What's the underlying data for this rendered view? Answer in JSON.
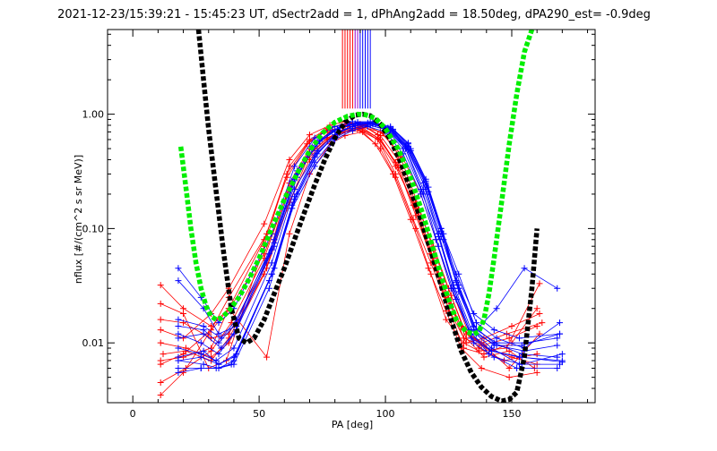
{
  "chart_data": {
    "type": "line",
    "title": "2021-12-23/15:39:21 - 15:45:23 UT, dSectr2add = 1, dPhAng2add = 18.50deg, dPA290_est=  -0.9deg",
    "xlabel": "PA [deg]",
    "ylabel": "nflux [#/(cm^2 s sr MeV)]",
    "xlim": [
      -10,
      183
    ],
    "ylim": [
      0.003,
      5.5
    ],
    "yscale": "log",
    "grid": false,
    "x_ticks": [
      0,
      50,
      100,
      150
    ],
    "x_tick_labels": [
      "0",
      "50",
      "100",
      "150"
    ],
    "y_ticks": [
      0.01,
      0.1,
      1.0
    ],
    "y_tick_labels": [
      "0.01",
      "0.10",
      "1.00"
    ],
    "colors": {
      "red_traces": "#ff0000",
      "blue_traces": "#0000ff",
      "black_fit": "#000000",
      "green_fit": "#00ee00"
    },
    "series": [
      {
        "color": "red",
        "style": "line+plus",
        "x": [
          11,
          20,
          31,
          37,
          52,
          62,
          70,
          77,
          84,
          90,
          97,
          104,
          112,
          118,
          124,
          130,
          137,
          147,
          160
        ],
        "y": [
          0.007,
          0.0075,
          0.009,
          0.018,
          0.06,
          0.22,
          0.45,
          0.62,
          0.7,
          0.72,
          0.6,
          0.35,
          0.15,
          0.06,
          0.025,
          0.014,
          0.009,
          0.007,
          0.008
        ]
      },
      {
        "color": "red",
        "style": "line+plus",
        "x": [
          11,
          20,
          31,
          38,
          53,
          62,
          70,
          78,
          85,
          91,
          98,
          105,
          112,
          119,
          125,
          131,
          138,
          148,
          162
        ],
        "y": [
          0.016,
          0.015,
          0.011,
          0.012,
          0.05,
          0.25,
          0.5,
          0.7,
          0.8,
          0.8,
          0.65,
          0.4,
          0.17,
          0.07,
          0.03,
          0.013,
          0.01,
          0.012,
          0.015
        ]
      },
      {
        "color": "red",
        "style": "line+plus",
        "x": [
          11,
          21,
          31,
          38,
          52,
          61,
          69,
          77,
          84,
          90,
          97,
          104,
          111,
          118,
          125,
          131,
          139,
          150,
          160
        ],
        "y": [
          0.01,
          0.009,
          0.0075,
          0.01,
          0.04,
          0.15,
          0.4,
          0.6,
          0.7,
          0.75,
          0.6,
          0.3,
          0.12,
          0.05,
          0.02,
          0.009,
          0.008,
          0.01,
          0.02
        ]
      },
      {
        "color": "red",
        "style": "line+plus",
        "x": [
          11,
          20,
          31,
          38,
          53,
          62,
          70,
          78,
          84,
          91,
          98,
          104,
          112,
          118,
          124,
          131,
          137,
          148,
          161
        ],
        "y": [
          0.032,
          0.02,
          0.014,
          0.02,
          0.0075,
          0.09,
          0.3,
          0.55,
          0.65,
          0.7,
          0.5,
          0.28,
          0.1,
          0.04,
          0.016,
          0.01,
          0.0085,
          0.009,
          0.033
        ]
      },
      {
        "color": "red",
        "style": "line+plus",
        "x": [
          11,
          20,
          30,
          37,
          52,
          61,
          69,
          77,
          85,
          90,
          97,
          105,
          113,
          119,
          126,
          132,
          139,
          149,
          159
        ],
        "y": [
          0.022,
          0.018,
          0.006,
          0.007,
          0.07,
          0.3,
          0.55,
          0.72,
          0.78,
          0.76,
          0.62,
          0.36,
          0.14,
          0.055,
          0.022,
          0.011,
          0.0075,
          0.0085,
          0.006
        ]
      },
      {
        "color": "red",
        "style": "line+plus",
        "x": [
          11,
          20,
          31,
          38,
          53,
          62,
          70,
          77,
          84,
          90,
          98,
          106,
          114,
          120,
          126,
          133,
          140,
          150,
          160
        ],
        "y": [
          0.0065,
          0.008,
          0.013,
          0.025,
          0.09,
          0.35,
          0.6,
          0.75,
          0.82,
          0.78,
          0.7,
          0.45,
          0.2,
          0.08,
          0.03,
          0.012,
          0.009,
          0.0075,
          0.0065
        ]
      },
      {
        "color": "red",
        "style": "line+plus",
        "x": [
          11,
          21,
          31,
          39,
          52,
          61,
          69,
          77,
          83,
          89,
          96,
          103,
          110,
          117,
          124,
          130,
          138,
          149,
          160
        ],
        "y": [
          0.0045,
          0.006,
          0.0085,
          0.015,
          0.055,
          0.2,
          0.42,
          0.62,
          0.72,
          0.74,
          0.55,
          0.3,
          0.12,
          0.045,
          0.019,
          0.009,
          0.006,
          0.005,
          0.0055
        ]
      },
      {
        "color": "red",
        "style": "line+plus",
        "x": [
          11,
          20,
          30,
          38,
          52,
          61,
          70,
          78,
          85,
          92,
          99,
          106,
          113,
          119,
          126,
          132,
          139,
          149,
          161
        ],
        "y": [
          0.0035,
          0.0055,
          0.012,
          0.02,
          0.08,
          0.28,
          0.58,
          0.76,
          0.84,
          0.8,
          0.68,
          0.42,
          0.16,
          0.065,
          0.026,
          0.012,
          0.0095,
          0.006,
          0.012
        ]
      },
      {
        "color": "red",
        "style": "line+plus",
        "x": [
          11,
          20,
          31,
          38,
          52,
          62,
          70,
          78,
          84,
          90,
          97,
          104,
          111,
          118,
          125,
          131,
          138,
          149,
          160
        ],
        "y": [
          0.013,
          0.011,
          0.018,
          0.03,
          0.11,
          0.4,
          0.66,
          0.8,
          0.86,
          0.82,
          0.66,
          0.38,
          0.16,
          0.06,
          0.024,
          0.011,
          0.0095,
          0.011,
          0.014
        ]
      },
      {
        "color": "red",
        "style": "line+plus",
        "x": [
          12,
          21,
          31,
          38,
          53,
          62,
          70,
          77,
          84,
          91,
          98,
          105,
          112,
          119,
          125,
          132,
          139,
          150,
          161
        ],
        "y": [
          0.008,
          0.0085,
          0.007,
          0.011,
          0.045,
          0.17,
          0.4,
          0.6,
          0.74,
          0.76,
          0.6,
          0.34,
          0.13,
          0.05,
          0.02,
          0.01,
          0.011,
          0.014,
          0.018
        ]
      },
      {
        "color": "blue",
        "style": "line+plus",
        "x": [
          18,
          27,
          34,
          40,
          54,
          63,
          72,
          80,
          87,
          93,
          100,
          107,
          114,
          120,
          126,
          133,
          141,
          152,
          168
        ],
        "y": [
          0.006,
          0.006,
          0.006,
          0.0065,
          0.03,
          0.15,
          0.35,
          0.6,
          0.72,
          0.78,
          0.7,
          0.45,
          0.2,
          0.08,
          0.03,
          0.013,
          0.008,
          0.006,
          0.006
        ]
      },
      {
        "color": "blue",
        "style": "line+plus",
        "x": [
          18,
          28,
          34,
          40,
          55,
          64,
          72,
          80,
          87,
          94,
          101,
          108,
          115,
          121,
          127,
          134,
          142,
          153,
          169
        ],
        "y": [
          0.007,
          0.0065,
          0.006,
          0.007,
          0.04,
          0.18,
          0.42,
          0.66,
          0.78,
          0.8,
          0.72,
          0.5,
          0.22,
          0.09,
          0.032,
          0.013,
          0.009,
          0.0065,
          0.0065
        ]
      },
      {
        "color": "blue",
        "style": "line+plus",
        "x": [
          18,
          27,
          33,
          40,
          55,
          64,
          73,
          81,
          88,
          95,
          102,
          109,
          116,
          122,
          128,
          135,
          143,
          154,
          168
        ],
        "y": [
          0.009,
          0.008,
          0.007,
          0.009,
          0.05,
          0.22,
          0.48,
          0.7,
          0.8,
          0.82,
          0.74,
          0.52,
          0.25,
          0.1,
          0.035,
          0.014,
          0.01,
          0.008,
          0.0075
        ]
      },
      {
        "color": "blue",
        "style": "line+plus",
        "x": [
          18,
          28,
          34,
          41,
          56,
          65,
          73,
          81,
          88,
          95,
          102,
          109,
          116,
          122,
          129,
          136,
          144,
          155,
          169
        ],
        "y": [
          0.0075,
          0.0085,
          0.0065,
          0.008,
          0.045,
          0.2,
          0.45,
          0.68,
          0.8,
          0.84,
          0.76,
          0.55,
          0.26,
          0.1,
          0.04,
          0.015,
          0.011,
          0.009,
          0.015
        ]
      },
      {
        "color": "blue",
        "style": "line+plus",
        "x": [
          18,
          27,
          34,
          40,
          54,
          63,
          71,
          79,
          86,
          93,
          100,
          107,
          114,
          121,
          127,
          134,
          142,
          153,
          170
        ],
        "y": [
          0.012,
          0.01,
          0.008,
          0.012,
          0.06,
          0.26,
          0.52,
          0.72,
          0.82,
          0.84,
          0.75,
          0.5,
          0.22,
          0.085,
          0.03,
          0.012,
          0.0085,
          0.0075,
          0.007
        ]
      },
      {
        "color": "blue",
        "style": "line+plus",
        "x": [
          18,
          28,
          35,
          41,
          56,
          65,
          74,
          82,
          89,
          96,
          103,
          110,
          117,
          123,
          129,
          136,
          144,
          155,
          168
        ],
        "y": [
          0.016,
          0.014,
          0.011,
          0.016,
          0.075,
          0.3,
          0.58,
          0.76,
          0.84,
          0.82,
          0.72,
          0.48,
          0.21,
          0.08,
          0.028,
          0.012,
          0.0095,
          0.0085,
          0.0095
        ]
      },
      {
        "color": "blue",
        "style": "line+plus",
        "x": [
          18,
          27,
          34,
          40,
          55,
          64,
          72,
          80,
          87,
          94,
          101,
          108,
          115,
          121,
          128,
          135,
          143,
          154,
          170
        ],
        "y": [
          0.045,
          0.025,
          0.015,
          0.02,
          0.09,
          0.35,
          0.62,
          0.78,
          0.86,
          0.86,
          0.76,
          0.5,
          0.2,
          0.07,
          0.024,
          0.01,
          0.0075,
          0.0065,
          0.008
        ]
      },
      {
        "color": "blue",
        "style": "line+plus",
        "x": [
          18,
          28,
          34,
          41,
          55,
          64,
          73,
          81,
          88,
          95,
          102,
          109,
          116,
          122,
          128,
          135,
          143,
          153,
          169
        ],
        "y": [
          0.035,
          0.02,
          0.012,
          0.014,
          0.065,
          0.27,
          0.55,
          0.74,
          0.82,
          0.82,
          0.74,
          0.5,
          0.24,
          0.095,
          0.04,
          0.018,
          0.013,
          0.011,
          0.012
        ]
      },
      {
        "color": "blue",
        "style": "line+plus",
        "x": [
          18,
          27,
          33,
          39,
          54,
          63,
          72,
          80,
          87,
          94,
          101,
          108,
          115,
          121,
          127,
          134,
          142,
          154,
          170
        ],
        "y": [
          0.0055,
          0.006,
          0.006,
          0.0065,
          0.035,
          0.16,
          0.38,
          0.62,
          0.75,
          0.8,
          0.73,
          0.52,
          0.25,
          0.09,
          0.03,
          0.011,
          0.0085,
          0.0075,
          0.0068
        ]
      },
      {
        "color": "blue",
        "style": "line+plus",
        "x": [
          18,
          28,
          35,
          41,
          56,
          65,
          73,
          81,
          88,
          95,
          102,
          109,
          116,
          122,
          129,
          136,
          144,
          155,
          168
        ],
        "y": [
          0.011,
          0.012,
          0.009,
          0.013,
          0.07,
          0.28,
          0.56,
          0.74,
          0.83,
          0.83,
          0.73,
          0.49,
          0.22,
          0.085,
          0.03,
          0.013,
          0.02,
          0.045,
          0.03
        ]
      },
      {
        "color": "blue",
        "style": "line+plus",
        "x": [
          18,
          27,
          34,
          40,
          55,
          64,
          72,
          81,
          88,
          95,
          102,
          109,
          116,
          122,
          128,
          135,
          143,
          154,
          169
        ],
        "y": [
          0.007,
          0.0075,
          0.0065,
          0.0075,
          0.04,
          0.19,
          0.44,
          0.68,
          0.8,
          0.85,
          0.78,
          0.56,
          0.27,
          0.1,
          0.034,
          0.013,
          0.0095,
          0.0095,
          0.012
        ]
      },
      {
        "color": "blue",
        "style": "line+plus",
        "x": [
          18,
          28,
          34,
          41,
          56,
          65,
          74,
          82,
          89,
          96,
          103,
          110,
          117,
          123,
          129,
          136,
          144,
          155,
          168
        ],
        "y": [
          0.014,
          0.013,
          0.01,
          0.015,
          0.08,
          0.32,
          0.6,
          0.77,
          0.85,
          0.84,
          0.74,
          0.5,
          0.23,
          0.09,
          0.032,
          0.013,
          0.01,
          0.01,
          0.011
        ]
      }
    ],
    "vertical_markers": {
      "red_x": [
        83,
        84,
        85,
        86,
        87
      ],
      "purple_x": [
        88,
        89
      ],
      "blue_x": [
        90,
        91,
        92,
        93,
        94
      ]
    },
    "fits": [
      {
        "name_color": "black",
        "style": "thick-dashed",
        "x": [
          26,
          28,
          30,
          33,
          36,
          39,
          42,
          45,
          48,
          52,
          56,
          60,
          64,
          68,
          72,
          76,
          80,
          84,
          88,
          91,
          94,
          98,
          102,
          106,
          110,
          114,
          118,
          122,
          126,
          130,
          134,
          138,
          142,
          146,
          149,
          152,
          155,
          158,
          160
        ],
        "y": [
          5.5,
          2.0,
          0.75,
          0.21,
          0.06,
          0.02,
          0.011,
          0.01,
          0.011,
          0.016,
          0.027,
          0.045,
          0.08,
          0.14,
          0.24,
          0.4,
          0.62,
          0.85,
          0.98,
          1.0,
          0.97,
          0.82,
          0.6,
          0.38,
          0.22,
          0.12,
          0.063,
          0.032,
          0.016,
          0.0085,
          0.0055,
          0.0041,
          0.0034,
          0.0031,
          0.0032,
          0.0037,
          0.0075,
          0.03,
          0.1
        ]
      },
      {
        "name_color": "green",
        "style": "thick-dashed",
        "x": [
          19,
          21,
          23,
          25,
          27,
          29,
          31,
          33,
          35,
          38,
          42,
          46,
          50,
          55,
          60,
          65,
          70,
          75,
          80,
          85,
          89,
          92,
          96,
          100,
          105,
          110,
          115,
          120,
          124,
          128,
          132,
          135,
          137,
          139,
          141,
          143,
          146,
          149,
          152,
          155,
          158
        ],
        "y": [
          0.52,
          0.23,
          0.1,
          0.05,
          0.03,
          0.021,
          0.017,
          0.016,
          0.0165,
          0.019,
          0.025,
          0.036,
          0.055,
          0.1,
          0.18,
          0.3,
          0.48,
          0.68,
          0.85,
          0.96,
          1.0,
          0.99,
          0.92,
          0.75,
          0.5,
          0.28,
          0.13,
          0.055,
          0.028,
          0.016,
          0.0125,
          0.012,
          0.0125,
          0.016,
          0.027,
          0.055,
          0.17,
          0.55,
          1.5,
          3.5,
          5.5
        ]
      }
    ]
  }
}
